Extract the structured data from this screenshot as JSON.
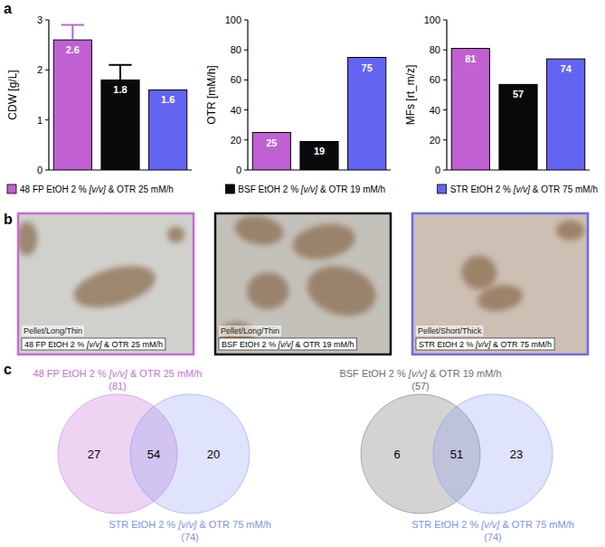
{
  "panel_letters": [
    "a",
    "b",
    "c"
  ],
  "chart_data": [
    {
      "type": "bar",
      "y_label": "CDW [g/L]",
      "categories": [
        null,
        null,
        null
      ],
      "values": [
        2.6,
        1.8,
        1.6
      ],
      "errors": [
        0.3,
        0.3,
        null
      ],
      "colors": [
        "#c060d2",
        "#0a0a0a",
        "#6464f2"
      ],
      "ylim": [
        0,
        3
      ],
      "yticks": [
        0,
        1,
        2,
        3
      ],
      "data_labels": true
    },
    {
      "type": "bar",
      "y_label": "OTR [mM/h]",
      "categories": [
        null,
        null,
        null
      ],
      "values": [
        25,
        19,
        75
      ],
      "colors": [
        "#c060d2",
        "#0a0a0a",
        "#6464f2"
      ],
      "ylim": [
        0,
        100
      ],
      "yticks": [
        0,
        20,
        40,
        60,
        80,
        100
      ],
      "data_labels": true
    },
    {
      "type": "bar",
      "y_label": "MFs [rt_m/z]",
      "categories": [
        null,
        null,
        null
      ],
      "values": [
        81,
        57,
        74
      ],
      "colors": [
        "#c060d2",
        "#0a0a0a",
        "#6464f2"
      ],
      "ylim": [
        0,
        100
      ],
      "yticks": [
        0,
        20,
        40,
        60,
        80,
        100
      ],
      "data_labels": true
    }
  ],
  "chart_legend": [
    {
      "label": "48 FP EtOH 2 % [v/v] & OTR 25 mM/h",
      "color": "#c060d2"
    },
    {
      "label": "BSF EtOH 2 % [v/v] & OTR 19 mM/h",
      "color": "#0a0a0a"
    },
    {
      "label": "STR EtOH 2 % [v/v] & OTR 75 mM/h",
      "color": "#6464f2"
    }
  ],
  "micrographs": [
    {
      "morphology": "Pellet/Long/Thin",
      "condition": "48 FP EtOH 2 % [v/v] & OTR 25 mM/h",
      "border_color": "#c86ad6"
    },
    {
      "morphology": "Pellet/Long/Thin",
      "condition": "BSF EtOH 2 % [v/v] & OTR 19 mM/h",
      "border_color": "#111111"
    },
    {
      "morphology": "Pellet/Short/Thick",
      "condition": "STR EtOH 2 % [v/v] & OTR 75 mM/h",
      "border_color": "#6a6af0"
    }
  ],
  "venn_diagrams": [
    {
      "set_a": {
        "label": "48 FP EtOH 2 % [v/v] & OTR 25 mM/h",
        "total": 81,
        "total_label": "(81)",
        "color": "#c56fd6"
      },
      "set_b": {
        "label": "STR EtOH 2 % [v/v] & OTR 75 mM/h",
        "total": 74,
        "total_label": "(74)",
        "color": "#7f8ff0"
      },
      "only_a": 27,
      "both": 54,
      "only_b": 20
    },
    {
      "set_a": {
        "label": "BSF EtOH 2 % [v/v] & OTR 19 mM/h",
        "total": 57,
        "total_label": "(57)",
        "color": "#6e6e6e"
      },
      "set_b": {
        "label": "STR EtOH 2 % [v/v] & OTR 75 mM/h",
        "total": 74,
        "total_label": "(74)",
        "color": "#7f8ff0"
      },
      "only_a": 6,
      "both": 51,
      "only_b": 23
    }
  ]
}
